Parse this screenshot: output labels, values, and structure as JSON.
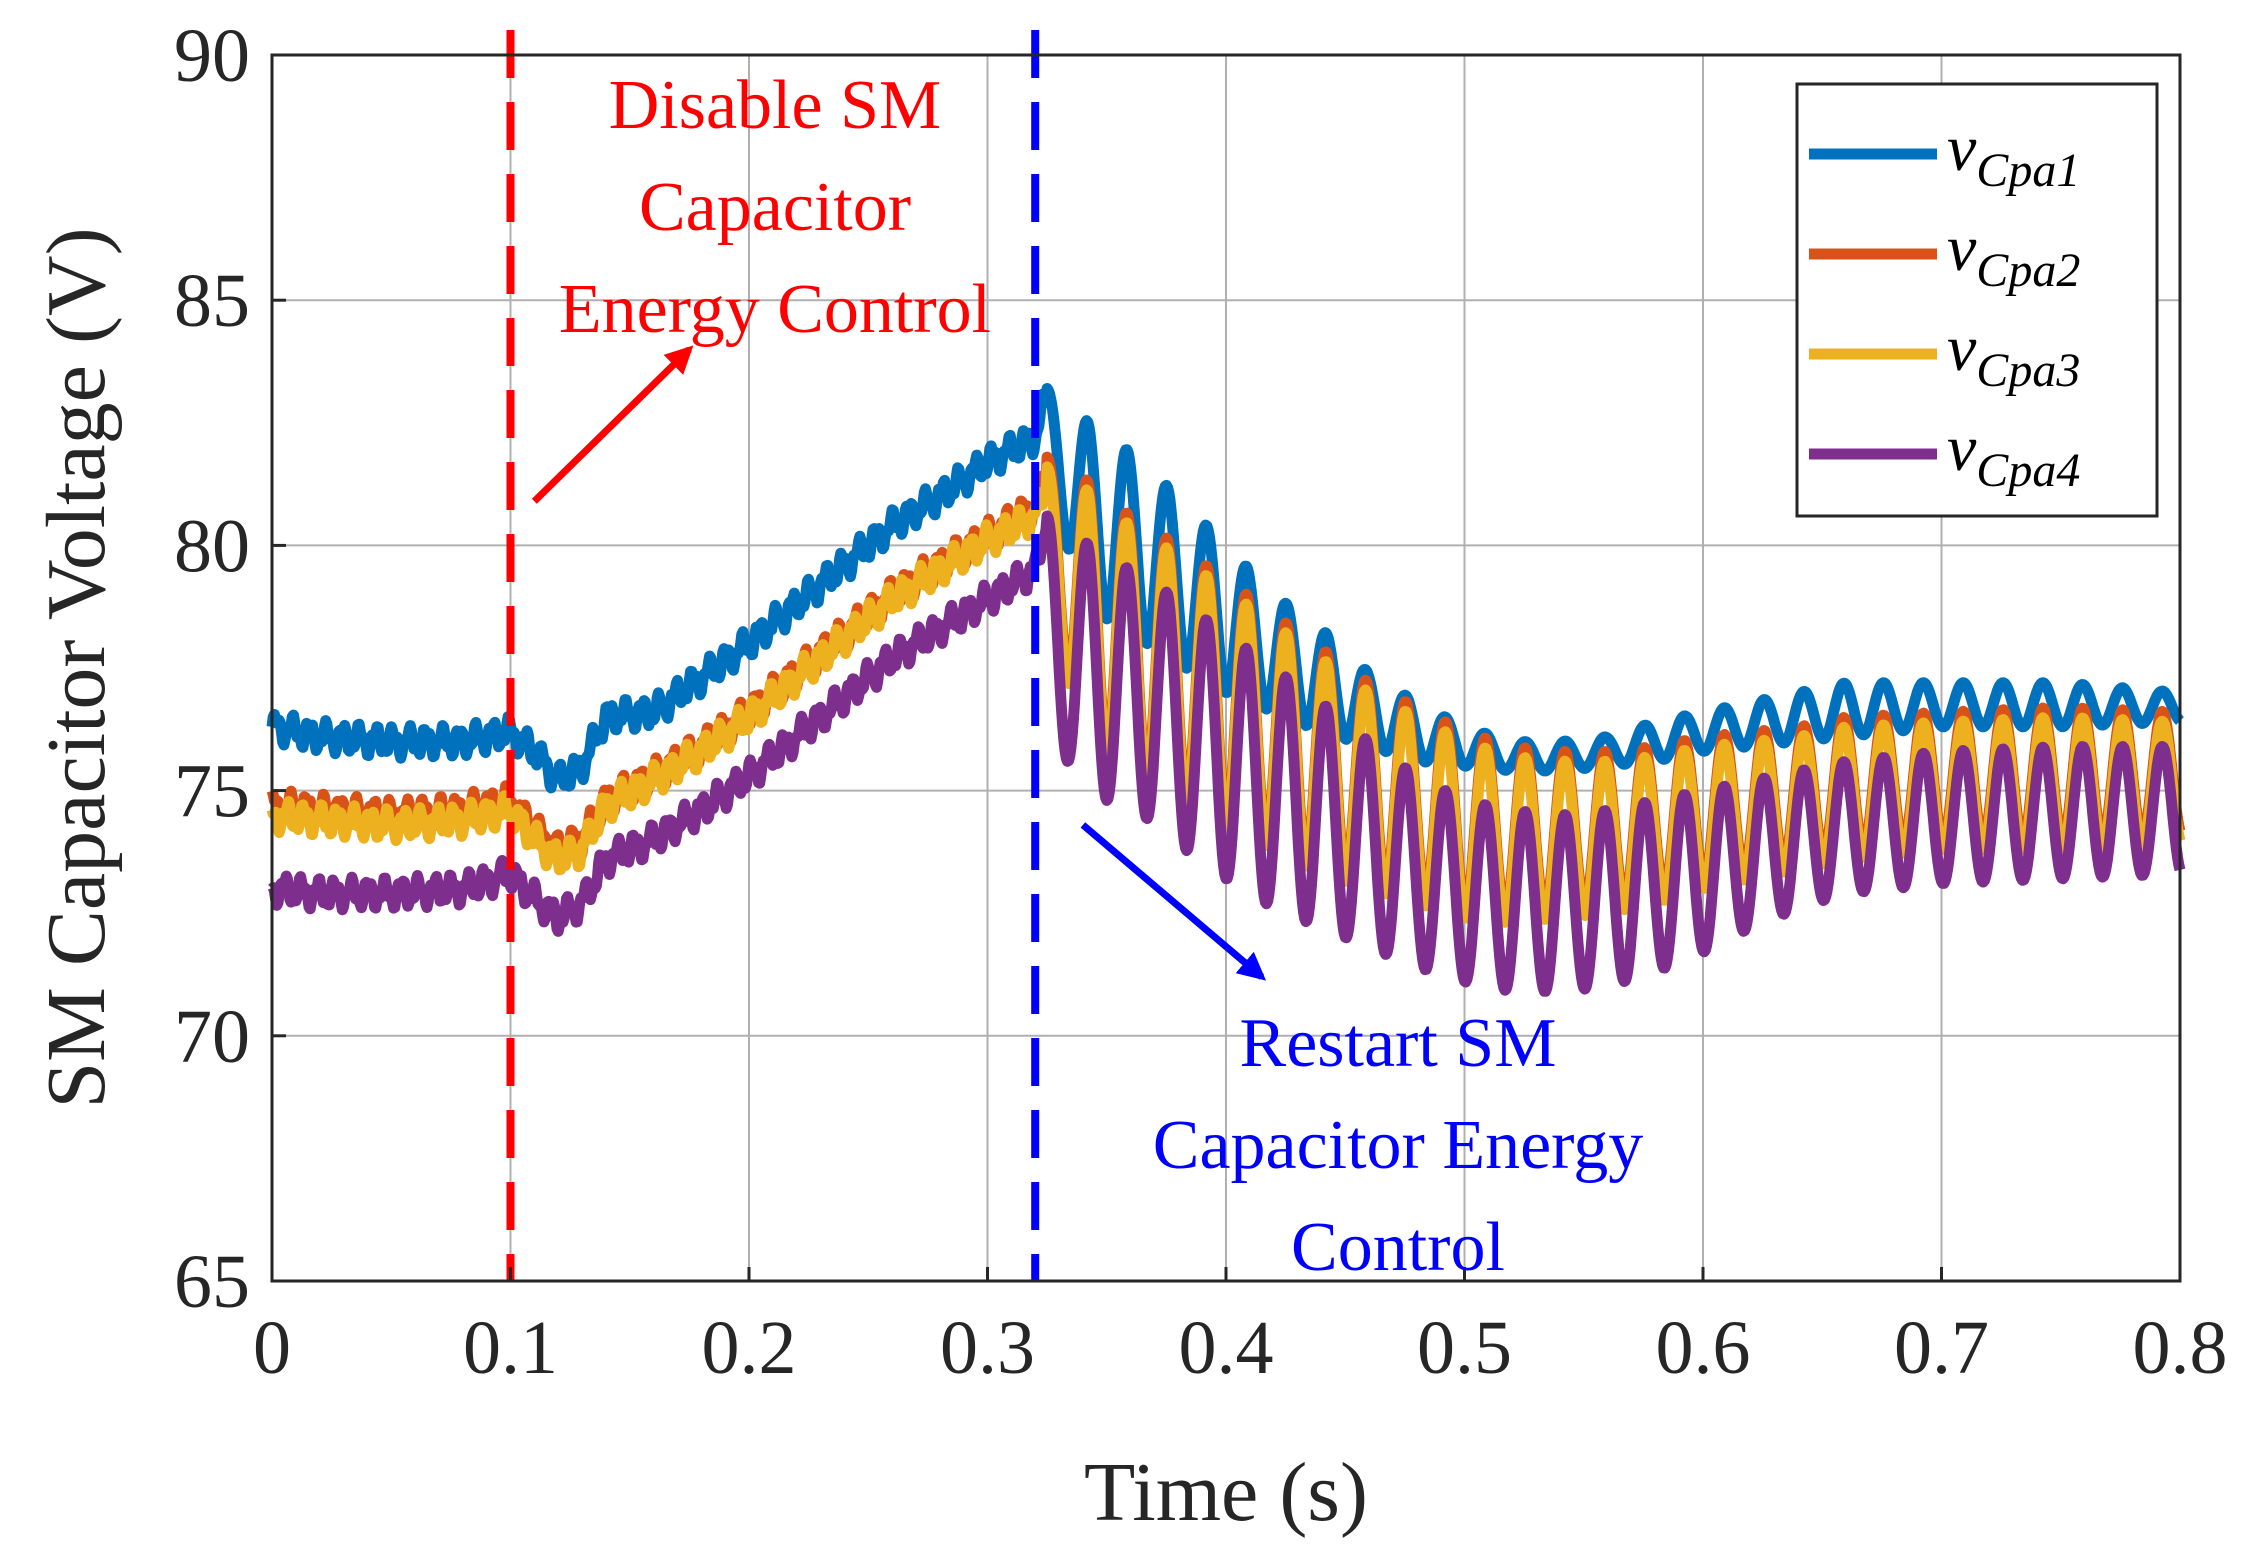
{
  "chart_data": {
    "type": "line",
    "xlabel": "Time (s)",
    "ylabel": "SM Capacitor Voltage (V)",
    "xlim": [
      0,
      0.8
    ],
    "ylim": [
      65,
      90
    ],
    "xticks": [
      "0",
      "0.1",
      "0.2",
      "0.3",
      "0.4",
      "0.5",
      "0.6",
      "0.7",
      "0.8"
    ],
    "yticks": [
      "65",
      "70",
      "75",
      "80",
      "85",
      "90"
    ],
    "grid": true,
    "legend_position": "top-right",
    "series": [
      {
        "name": "v",
        "sub": "Cpa1",
        "color": "#0072BD",
        "points": [
          [
            0,
            76.3
          ],
          [
            0.02,
            76.1
          ],
          [
            0.05,
            76.0
          ],
          [
            0.08,
            76.0
          ],
          [
            0.1,
            76.2
          ],
          [
            0.11,
            75.8
          ],
          [
            0.12,
            75.2
          ],
          [
            0.13,
            75.5
          ],
          [
            0.14,
            76.5
          ],
          [
            0.16,
            76.6
          ],
          [
            0.18,
            77.3
          ],
          [
            0.2,
            78.0
          ],
          [
            0.22,
            78.8
          ],
          [
            0.24,
            79.6
          ],
          [
            0.26,
            80.4
          ],
          [
            0.28,
            81.0
          ],
          [
            0.3,
            81.7
          ],
          [
            0.32,
            82.2
          ],
          [
            0.325,
            83.1
          ]
        ],
        "osc_max": [
          [
            0.325,
            83.2
          ],
          [
            0.34,
            82.6
          ],
          [
            0.36,
            81.9
          ],
          [
            0.38,
            81.0
          ],
          [
            0.4,
            80.0
          ],
          [
            0.42,
            79.0
          ],
          [
            0.44,
            78.3
          ],
          [
            0.46,
            77.4
          ],
          [
            0.48,
            76.8
          ],
          [
            0.5,
            76.3
          ],
          [
            0.52,
            76.0
          ],
          [
            0.54,
            76.0
          ],
          [
            0.56,
            76.1
          ],
          [
            0.58,
            76.4
          ],
          [
            0.6,
            76.6
          ],
          [
            0.62,
            76.8
          ],
          [
            0.64,
            77.0
          ],
          [
            0.66,
            77.2
          ],
          [
            0.7,
            77.2
          ],
          [
            0.75,
            77.2
          ],
          [
            0.8,
            77.0
          ]
        ],
        "osc_min": [
          [
            0.325,
            81.5
          ],
          [
            0.34,
            78.8
          ],
          [
            0.36,
            78.2
          ],
          [
            0.38,
            77.6
          ],
          [
            0.4,
            77.0
          ],
          [
            0.42,
            76.6
          ],
          [
            0.44,
            76.2
          ],
          [
            0.46,
            75.9
          ],
          [
            0.48,
            75.6
          ],
          [
            0.5,
            75.5
          ],
          [
            0.52,
            75.4
          ],
          [
            0.54,
            75.4
          ],
          [
            0.56,
            75.5
          ],
          [
            0.58,
            75.6
          ],
          [
            0.6,
            75.8
          ],
          [
            0.62,
            75.9
          ],
          [
            0.64,
            76.0
          ],
          [
            0.66,
            76.1
          ],
          [
            0.7,
            76.3
          ],
          [
            0.75,
            76.3
          ],
          [
            0.8,
            76.4
          ]
        ]
      },
      {
        "name": "v",
        "sub": "Cpa2",
        "color": "#D95319",
        "points": [
          [
            0,
            74.7
          ],
          [
            0.02,
            74.6
          ],
          [
            0.05,
            74.5
          ],
          [
            0.08,
            74.6
          ],
          [
            0.1,
            74.8
          ],
          [
            0.11,
            74.2
          ],
          [
            0.12,
            73.8
          ],
          [
            0.13,
            74.0
          ],
          [
            0.14,
            74.8
          ],
          [
            0.16,
            75.3
          ],
          [
            0.18,
            75.9
          ],
          [
            0.2,
            76.6
          ],
          [
            0.22,
            77.4
          ],
          [
            0.24,
            78.2
          ],
          [
            0.26,
            79.0
          ],
          [
            0.28,
            79.6
          ],
          [
            0.3,
            80.2
          ],
          [
            0.32,
            80.8
          ],
          [
            0.325,
            81.5
          ]
        ],
        "osc_max": [
          [
            0.325,
            81.8
          ],
          [
            0.34,
            81.4
          ],
          [
            0.36,
            80.6
          ],
          [
            0.38,
            80.0
          ],
          [
            0.4,
            79.3
          ],
          [
            0.42,
            78.6
          ],
          [
            0.44,
            77.9
          ],
          [
            0.46,
            77.2
          ],
          [
            0.48,
            76.7
          ],
          [
            0.5,
            76.2
          ],
          [
            0.52,
            75.9
          ],
          [
            0.54,
            75.8
          ],
          [
            0.56,
            75.8
          ],
          [
            0.58,
            75.9
          ],
          [
            0.6,
            76.1
          ],
          [
            0.62,
            76.2
          ],
          [
            0.64,
            76.3
          ],
          [
            0.66,
            76.5
          ],
          [
            0.7,
            76.6
          ],
          [
            0.75,
            76.7
          ],
          [
            0.8,
            76.6
          ]
        ],
        "osc_min": [
          [
            0.325,
            79.0
          ],
          [
            0.34,
            76.2
          ],
          [
            0.36,
            75.6
          ],
          [
            0.38,
            75.0
          ],
          [
            0.4,
            74.5
          ],
          [
            0.42,
            74.0
          ],
          [
            0.44,
            73.5
          ],
          [
            0.46,
            73.2
          ],
          [
            0.48,
            72.9
          ],
          [
            0.5,
            72.6
          ],
          [
            0.52,
            72.5
          ],
          [
            0.54,
            72.6
          ],
          [
            0.56,
            72.7
          ],
          [
            0.58,
            72.9
          ],
          [
            0.6,
            73.2
          ],
          [
            0.62,
            73.4
          ],
          [
            0.64,
            73.6
          ],
          [
            0.66,
            73.8
          ],
          [
            0.7,
            74.0
          ],
          [
            0.75,
            74.0
          ],
          [
            0.8,
            74.1
          ]
        ]
      },
      {
        "name": "v",
        "sub": "Cpa3",
        "color": "#EDB120",
        "points": [
          [
            0,
            74.5
          ],
          [
            0.02,
            74.4
          ],
          [
            0.05,
            74.3
          ],
          [
            0.08,
            74.4
          ],
          [
            0.1,
            74.6
          ],
          [
            0.11,
            74.0
          ],
          [
            0.12,
            73.6
          ],
          [
            0.13,
            73.8
          ],
          [
            0.14,
            74.7
          ],
          [
            0.16,
            75.2
          ],
          [
            0.18,
            75.8
          ],
          [
            0.2,
            76.5
          ],
          [
            0.22,
            77.3
          ],
          [
            0.24,
            78.1
          ],
          [
            0.26,
            78.9
          ],
          [
            0.28,
            79.5
          ],
          [
            0.3,
            80.1
          ],
          [
            0.32,
            80.6
          ],
          [
            0.325,
            81.3
          ]
        ],
        "osc_max": [
          [
            0.325,
            81.6
          ],
          [
            0.34,
            81.2
          ],
          [
            0.36,
            80.4
          ],
          [
            0.38,
            79.8
          ],
          [
            0.4,
            79.1
          ],
          [
            0.42,
            78.4
          ],
          [
            0.44,
            77.7
          ],
          [
            0.46,
            77.0
          ],
          [
            0.48,
            76.5
          ],
          [
            0.5,
            76.0
          ],
          [
            0.52,
            75.7
          ],
          [
            0.54,
            75.6
          ],
          [
            0.56,
            75.6
          ],
          [
            0.58,
            75.7
          ],
          [
            0.6,
            75.9
          ],
          [
            0.62,
            76.0
          ],
          [
            0.64,
            76.1
          ],
          [
            0.66,
            76.3
          ],
          [
            0.7,
            76.4
          ],
          [
            0.75,
            76.5
          ],
          [
            0.8,
            76.4
          ]
        ],
        "osc_min": [
          [
            0.325,
            78.8
          ],
          [
            0.34,
            76.0
          ],
          [
            0.36,
            75.4
          ],
          [
            0.38,
            74.8
          ],
          [
            0.4,
            74.3
          ],
          [
            0.42,
            73.8
          ],
          [
            0.44,
            73.3
          ],
          [
            0.46,
            73.0
          ],
          [
            0.48,
            72.7
          ],
          [
            0.5,
            72.4
          ],
          [
            0.52,
            72.3
          ],
          [
            0.54,
            72.4
          ],
          [
            0.56,
            72.5
          ],
          [
            0.58,
            72.7
          ],
          [
            0.6,
            73.0
          ],
          [
            0.62,
            73.2
          ],
          [
            0.64,
            73.4
          ],
          [
            0.66,
            73.6
          ],
          [
            0.7,
            73.8
          ],
          [
            0.75,
            73.8
          ],
          [
            0.8,
            73.9
          ]
        ]
      },
      {
        "name": "v",
        "sub": "Cpa4",
        "color": "#7E2F8E",
        "points": [
          [
            0,
            73.0
          ],
          [
            0.02,
            72.9
          ],
          [
            0.05,
            72.9
          ],
          [
            0.08,
            73.0
          ],
          [
            0.1,
            73.3
          ],
          [
            0.11,
            72.8
          ],
          [
            0.12,
            72.4
          ],
          [
            0.13,
            72.7
          ],
          [
            0.14,
            73.6
          ],
          [
            0.16,
            74.0
          ],
          [
            0.18,
            74.6
          ],
          [
            0.2,
            75.3
          ],
          [
            0.22,
            76.1
          ],
          [
            0.24,
            76.9
          ],
          [
            0.26,
            77.7
          ],
          [
            0.28,
            78.3
          ],
          [
            0.3,
            78.9
          ],
          [
            0.32,
            79.5
          ],
          [
            0.325,
            80.6
          ]
        ],
        "osc_max": [
          [
            0.325,
            80.6
          ],
          [
            0.34,
            80.1
          ],
          [
            0.36,
            79.5
          ],
          [
            0.38,
            78.9
          ],
          [
            0.4,
            78.2
          ],
          [
            0.42,
            77.5
          ],
          [
            0.44,
            76.8
          ],
          [
            0.46,
            76.0
          ],
          [
            0.48,
            75.3
          ],
          [
            0.5,
            74.8
          ],
          [
            0.52,
            74.6
          ],
          [
            0.54,
            74.5
          ],
          [
            0.56,
            74.6
          ],
          [
            0.58,
            74.8
          ],
          [
            0.6,
            75.0
          ],
          [
            0.62,
            75.2
          ],
          [
            0.64,
            75.4
          ],
          [
            0.66,
            75.6
          ],
          [
            0.7,
            75.8
          ],
          [
            0.75,
            75.9
          ],
          [
            0.8,
            75.9
          ]
        ],
        "osc_min": [
          [
            0.325,
            76.5
          ],
          [
            0.34,
            74.9
          ],
          [
            0.36,
            74.7
          ],
          [
            0.38,
            73.9
          ],
          [
            0.4,
            73.2
          ],
          [
            0.42,
            72.6
          ],
          [
            0.44,
            72.2
          ],
          [
            0.46,
            71.8
          ],
          [
            0.48,
            71.4
          ],
          [
            0.5,
            71.1
          ],
          [
            0.52,
            70.9
          ],
          [
            0.54,
            70.9
          ],
          [
            0.56,
            71.0
          ],
          [
            0.58,
            71.3
          ],
          [
            0.6,
            71.7
          ],
          [
            0.62,
            72.2
          ],
          [
            0.64,
            72.6
          ],
          [
            0.66,
            72.9
          ],
          [
            0.7,
            73.1
          ],
          [
            0.75,
            73.2
          ],
          [
            0.8,
            73.3
          ]
        ]
      }
    ],
    "osc_period": 0.0167,
    "markers": [
      {
        "x": 0.1,
        "color": "#FF0000",
        "name": "marker-disable"
      },
      {
        "x": 0.32,
        "color": "#0000FF",
        "name": "marker-restart"
      }
    ],
    "annotations": [
      {
        "name": "annotation-disable",
        "color": "#FF0000",
        "lines": [
          "Disable SM",
          "Capacitor",
          "Energy Control"
        ],
        "arrow_from": [
          0.11,
          80.9
        ],
        "arrow_to": [
          0.175,
          84.0
        ]
      },
      {
        "name": "annotation-restart",
        "color": "#0000FF",
        "lines": [
          "Restart SM",
          "Capacitor Energy",
          "Control"
        ],
        "arrow_from": [
          0.34,
          74.3
        ],
        "arrow_to": [
          0.415,
          71.2
        ]
      }
    ]
  }
}
